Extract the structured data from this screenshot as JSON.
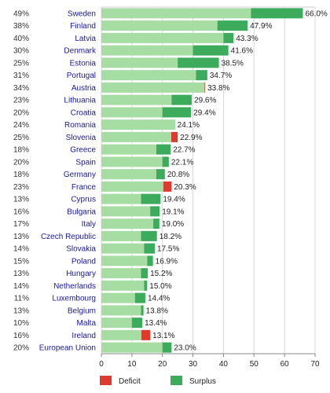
{
  "chart_data": {
    "type": "bar",
    "orientation": "horizontal",
    "stacked": true,
    "xlim": [
      0,
      70
    ],
    "xticks": [
      0,
      10,
      20,
      30,
      40,
      50,
      60,
      70
    ],
    "grid": true,
    "legend_position": "bottom",
    "colors": {
      "base": "#a6dda2",
      "deficit": "#e03a2f",
      "surplus": "#3cab5c"
    },
    "legend": [
      {
        "key": "deficit",
        "label": "Deficit"
      },
      {
        "key": "surplus",
        "label": "Surplus"
      }
    ],
    "rows": [
      {
        "country": "Sweden",
        "target": "49%",
        "target_value": 49,
        "value": 66.0,
        "label": "66.0%"
      },
      {
        "country": "Finland",
        "target": "38%",
        "target_value": 38,
        "value": 47.9,
        "label": "47.9%"
      },
      {
        "country": "Latvia",
        "target": "40%",
        "target_value": 40,
        "value": 43.3,
        "label": "43.3%"
      },
      {
        "country": "Denmark",
        "target": "30%",
        "target_value": 30,
        "value": 41.6,
        "label": "41.6%"
      },
      {
        "country": "Estonia",
        "target": "25%",
        "target_value": 25,
        "value": 38.5,
        "label": "38.5%"
      },
      {
        "country": "Portugal",
        "target": "31%",
        "target_value": 31,
        "value": 34.7,
        "label": "34.7%"
      },
      {
        "country": "Austria",
        "target": "34%",
        "target_value": 34,
        "value": 33.8,
        "label": "33.8%"
      },
      {
        "country": "Lithuania",
        "target": "23%",
        "target_value": 23,
        "value": 29.6,
        "label": "29.6%"
      },
      {
        "country": "Croatia",
        "target": "20%",
        "target_value": 20,
        "value": 29.4,
        "label": "29.4%"
      },
      {
        "country": "Romania",
        "target": "24%",
        "target_value": 24,
        "value": 24.1,
        "label": "24.1%"
      },
      {
        "country": "Slovenia",
        "target": "25%",
        "target_value": 25,
        "value": 22.9,
        "label": "22.9%"
      },
      {
        "country": "Greece",
        "target": "18%",
        "target_value": 18,
        "value": 22.7,
        "label": "22.7%"
      },
      {
        "country": "Spain",
        "target": "20%",
        "target_value": 20,
        "value": 22.1,
        "label": "22.1%"
      },
      {
        "country": "Germany",
        "target": "18%",
        "target_value": 18,
        "value": 20.8,
        "label": "20.8%"
      },
      {
        "country": "France",
        "target": "23%",
        "target_value": 23,
        "value": 20.3,
        "label": "20.3%"
      },
      {
        "country": "Cyprus",
        "target": "13%",
        "target_value": 13,
        "value": 19.4,
        "label": "19.4%"
      },
      {
        "country": "Bulgaria",
        "target": "16%",
        "target_value": 16,
        "value": 19.1,
        "label": "19.1%"
      },
      {
        "country": "Italy",
        "target": "17%",
        "target_value": 17,
        "value": 19.0,
        "label": "19.0%"
      },
      {
        "country": "Czech Republic",
        "target": "13%",
        "target_value": 13,
        "value": 18.2,
        "label": "18.2%"
      },
      {
        "country": "Slovakia",
        "target": "14%",
        "target_value": 14,
        "value": 17.5,
        "label": "17.5%"
      },
      {
        "country": "Poland",
        "target": "15%",
        "target_value": 15,
        "value": 16.9,
        "label": "16.9%"
      },
      {
        "country": "Hungary",
        "target": "13%",
        "target_value": 13,
        "value": 15.2,
        "label": "15.2%"
      },
      {
        "country": "Netherlands",
        "target": "14%",
        "target_value": 14,
        "value": 15.0,
        "label": "15.0%"
      },
      {
        "country": "Luxembourg",
        "target": "11%",
        "target_value": 11,
        "value": 14.4,
        "label": "14.4%"
      },
      {
        "country": "Belgium",
        "target": "13%",
        "target_value": 13,
        "value": 13.8,
        "label": "13.8%"
      },
      {
        "country": "Malta",
        "target": "10%",
        "target_value": 10,
        "value": 13.4,
        "label": "13.4%"
      },
      {
        "country": "Ireland",
        "target": "16%",
        "target_value": 16,
        "value": 13.1,
        "label": "13.1%"
      },
      {
        "country": "European Union",
        "target": "20%",
        "target_value": 20,
        "value": 23.0,
        "label": "23.0%"
      }
    ]
  }
}
